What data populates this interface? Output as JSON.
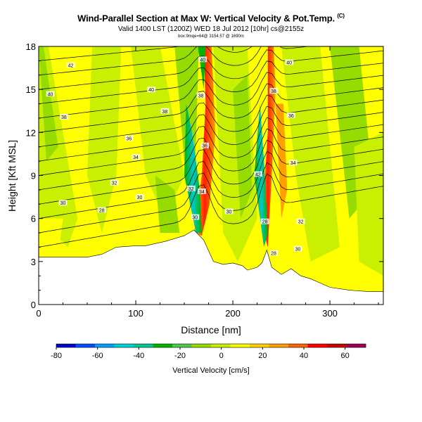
{
  "header": {
    "title": "Wind-Parallel Section at Max W: Vertical Velocity & Pot.Temp.",
    "title_mark": "(C)",
    "subtitle": "Valid 1400 LST (1200Z) WED 18 Jul 2012 [10hr] cs@2155z",
    "subtitle2": "box:9mqe=64@ 3154.57 @ 1690m"
  },
  "chart_data": {
    "type": "heatmap",
    "xlabel": "Distance [nm]",
    "ylabel": "Height [Kft MSL]",
    "xlim": [
      0,
      355
    ],
    "ylim": [
      0,
      18
    ],
    "x_ticks": [
      "0",
      "100",
      "200",
      "300"
    ],
    "x_tick_values": [
      0,
      100,
      200,
      300
    ],
    "y_ticks": [
      "0",
      "3",
      "6",
      "9",
      "12",
      "15",
      "18"
    ],
    "y_tick_values": [
      0,
      3,
      6,
      9,
      12,
      15,
      18
    ],
    "grid": false,
    "terrain": {
      "x": [
        0,
        10,
        30,
        50,
        65,
        80,
        100,
        110,
        130,
        150,
        160,
        170,
        180,
        190,
        200,
        210,
        215,
        220,
        225,
        230,
        235,
        240,
        250,
        260,
        270,
        280,
        290,
        300,
        320,
        340,
        355
      ],
      "y": [
        3.3,
        3.3,
        3.3,
        3.3,
        3.5,
        4.0,
        4.1,
        4.1,
        4.4,
        4.8,
        5.2,
        4.5,
        3.0,
        2.8,
        2.9,
        2.7,
        2.4,
        2.5,
        2.6,
        2.9,
        3.8,
        2.6,
        2.1,
        2.5,
        2.0,
        1.8,
        1.5,
        1.2,
        1.0,
        0.9,
        0.9
      ]
    },
    "contour_labels": [
      {
        "text": "42",
        "x": 33,
        "y": 16.7
      },
      {
        "text": "40",
        "x": 12,
        "y": 14.7
      },
      {
        "text": "40",
        "x": 116,
        "y": 15.0
      },
      {
        "text": "38",
        "x": 26,
        "y": 13.1
      },
      {
        "text": "38",
        "x": 130,
        "y": 13.5
      },
      {
        "text": "36",
        "x": 93,
        "y": 11.6
      },
      {
        "text": "34",
        "x": 100,
        "y": 10.3
      },
      {
        "text": "32",
        "x": 78,
        "y": 8.5
      },
      {
        "text": "30",
        "x": 104,
        "y": 7.5
      },
      {
        "text": "30",
        "x": 25,
        "y": 7.1
      },
      {
        "text": "28",
        "x": 65,
        "y": 6.6
      },
      {
        "text": "40",
        "x": 169,
        "y": 17.1
      },
      {
        "text": "38",
        "x": 167,
        "y": 14.6
      },
      {
        "text": "36",
        "x": 171,
        "y": 11.1
      },
      {
        "text": "34",
        "x": 168,
        "y": 7.9
      },
      {
        "text": "32",
        "x": 157,
        "y": 8.1
      },
      {
        "text": "30",
        "x": 161,
        "y": 6.1
      },
      {
        "text": "30",
        "x": 196,
        "y": 6.5
      },
      {
        "text": "42",
        "x": 226,
        "y": 9.1
      },
      {
        "text": "38",
        "x": 242,
        "y": 14.9
      },
      {
        "text": "40",
        "x": 258,
        "y": 16.9
      },
      {
        "text": "36",
        "x": 260,
        "y": 13.2
      },
      {
        "text": "34",
        "x": 262,
        "y": 9.9
      },
      {
        "text": "32",
        "x": 270,
        "y": 5.8
      },
      {
        "text": "30",
        "x": 267,
        "y": 3.9
      },
      {
        "text": "28",
        "x": 233,
        "y": 5.8
      },
      {
        "text": "28",
        "x": 242,
        "y": 3.6
      }
    ],
    "colorbar": {
      "label": "Vertical Velocity [cm/s]",
      "min": -80,
      "max": 70,
      "tick_labels": [
        "-80",
        "-60",
        "-40",
        "-20",
        "0",
        "20",
        "40",
        "60"
      ],
      "tick_values": [
        -80,
        -60,
        -40,
        -20,
        0,
        20,
        40,
        60
      ],
      "colors": [
        "#0000c8",
        "#0050ff",
        "#00a0ff",
        "#00d2d2",
        "#00c896",
        "#00b400",
        "#50c850",
        "#96dc00",
        "#c8f000",
        "#ffff00",
        "#ffd200",
        "#ffa000",
        "#ff6400",
        "#ff0000",
        "#c80000",
        "#a00050"
      ]
    }
  }
}
